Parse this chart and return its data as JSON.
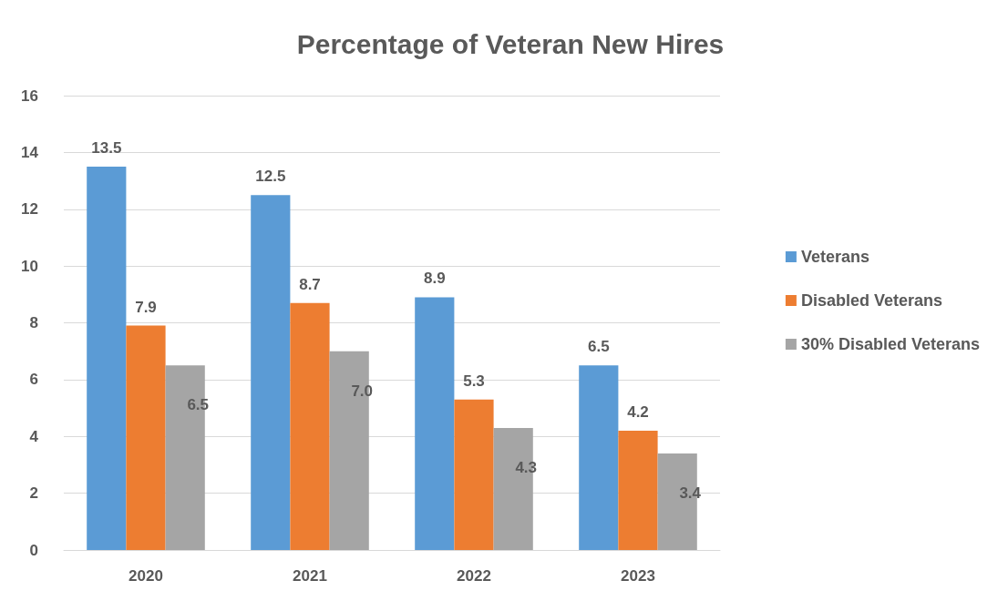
{
  "chart_data": {
    "type": "bar",
    "title": "Percentage of Veteran New Hires",
    "categories": [
      "2020",
      "2021",
      "2022",
      "2023"
    ],
    "series": [
      {
        "name": "Veterans",
        "color": "#5b9bd5",
        "values": [
          13.5,
          12.5,
          8.9,
          6.5
        ],
        "value_labels": [
          "13.5",
          "12.5",
          "8.9",
          "6.5"
        ]
      },
      {
        "name": "Disabled Veterans",
        "color": "#ed7d31",
        "values": [
          7.9,
          8.7,
          5.3,
          4.2
        ],
        "value_labels": [
          "7.9",
          "8.7",
          "5.3",
          "4.2"
        ]
      },
      {
        "name": "30% Disabled Veterans",
        "color": "#a5a5a5",
        "values": [
          6.5,
          7.0,
          4.3,
          3.4
        ],
        "value_labels": [
          "6.5",
          "7.0",
          "4.3",
          "3.4"
        ]
      }
    ],
    "ylim": [
      0,
      16
    ],
    "yticks": [
      0,
      2,
      4,
      6,
      8,
      10,
      12,
      14,
      16
    ],
    "grid": "y",
    "legend": "right"
  }
}
